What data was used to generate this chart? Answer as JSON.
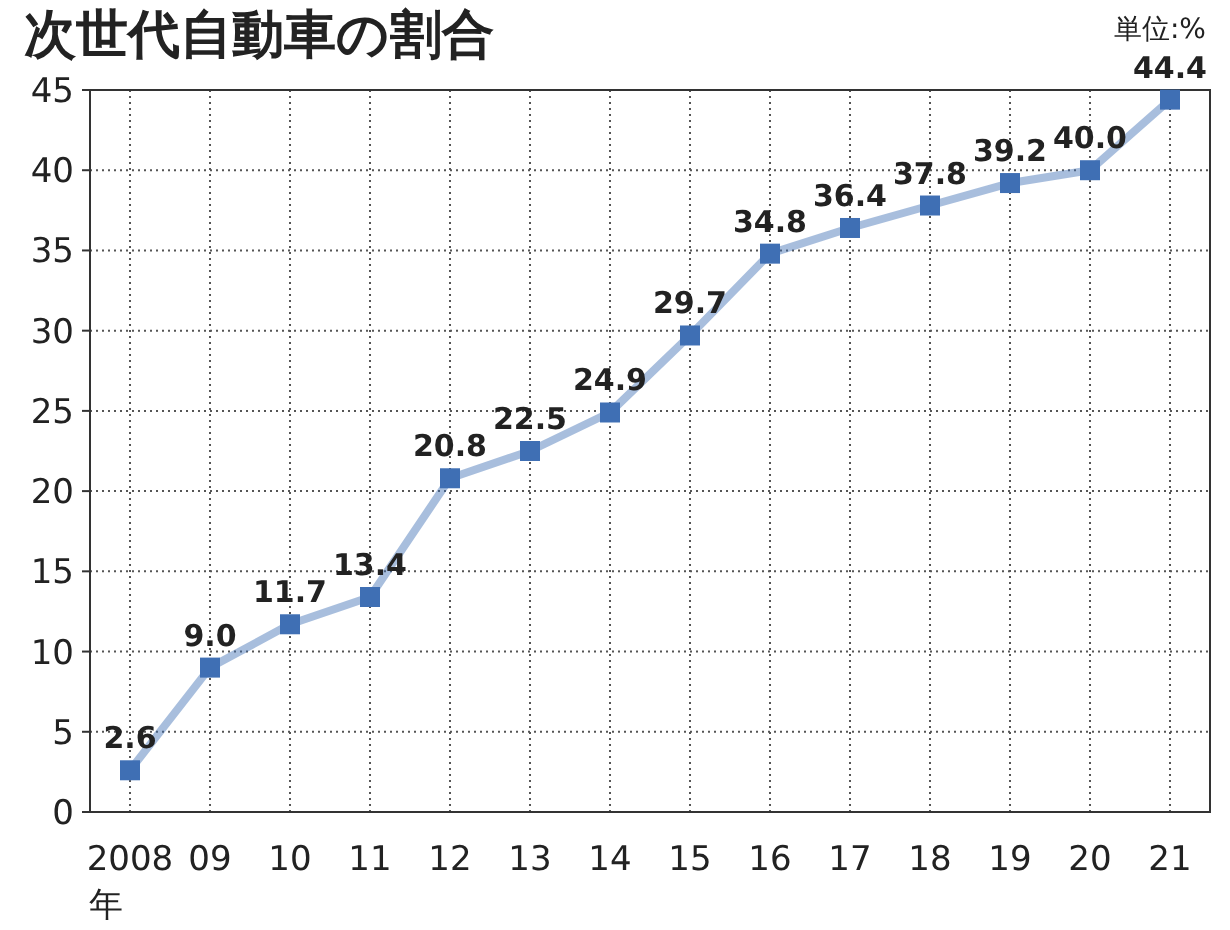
{
  "chart_data": {
    "type": "line",
    "title": "次世代自動車の割合",
    "xlabel": "年",
    "annotations": [
      "単位:%"
    ],
    "categories": [
      "2008",
      "09",
      "10",
      "11",
      "12",
      "13",
      "14",
      "15",
      "16",
      "17",
      "18",
      "19",
      "20",
      "21"
    ],
    "series": [
      {
        "color": "#3f6fb4",
        "values": [
          2.6,
          9.0,
          11.7,
          13.4,
          20.8,
          22.5,
          24.9,
          29.7,
          34.8,
          36.4,
          37.8,
          39.2,
          40.0,
          44.4
        ],
        "value_labels": [
          "2.6",
          "9.0",
          "11.7",
          "13.4",
          "20.8",
          "22.5",
          "24.9",
          "29.7",
          "34.8",
          "36.4",
          "37.8",
          "39.2",
          "40.0",
          "44.4"
        ]
      }
    ],
    "ylim": [
      0,
      45
    ],
    "yticks": [
      0,
      5,
      10,
      15,
      20,
      25,
      30,
      35,
      40,
      45
    ],
    "grid": true,
    "marker": "square",
    "line_style": "solid"
  }
}
